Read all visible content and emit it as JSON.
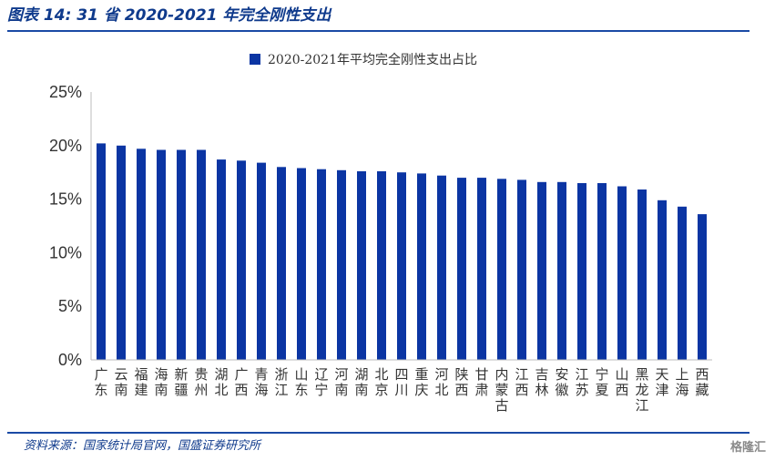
{
  "header": {
    "title": "图表 14:  31 省 2020-2021 年完全刚性支出"
  },
  "footer": {
    "source": "资料来源：国家统计局官网，国盛证券研究所",
    "watermark": "格隆汇"
  },
  "colors": {
    "bar": "#0b35a3",
    "accent": "#1a4aa5",
    "text": "#333333"
  },
  "chart_data": {
    "type": "bar",
    "title": "",
    "xlabel": "",
    "ylabel": "",
    "ylim": [
      0,
      25
    ],
    "yticks": [
      "0%",
      "5%",
      "10%",
      "15%",
      "20%",
      "25%"
    ],
    "legend": {
      "position": "top",
      "entries": [
        "2020-2021年平均完全刚性支出占比"
      ]
    },
    "categories": [
      "广东",
      "云南",
      "福建",
      "海南",
      "新疆",
      "贵州",
      "湖北",
      "广西",
      "青海",
      "浙江",
      "山东",
      "辽宁",
      "河南",
      "湖南",
      "北京",
      "四川",
      "重庆",
      "河北",
      "陕西",
      "甘肃",
      "内蒙古",
      "江西",
      "吉林",
      "安徽",
      "江苏",
      "宁夏",
      "山西",
      "黑龙江",
      "天津",
      "上海",
      "西藏"
    ],
    "series": [
      {
        "name": "2020-2021年平均完全刚性支出占比",
        "values": [
          20.2,
          20.0,
          19.7,
          19.6,
          19.6,
          19.6,
          18.7,
          18.6,
          18.4,
          18.0,
          17.9,
          17.8,
          17.7,
          17.6,
          17.6,
          17.5,
          17.4,
          17.2,
          17.0,
          17.0,
          16.9,
          16.8,
          16.6,
          16.6,
          16.5,
          16.5,
          16.2,
          15.9,
          14.9,
          14.3,
          13.6
        ]
      }
    ]
  }
}
